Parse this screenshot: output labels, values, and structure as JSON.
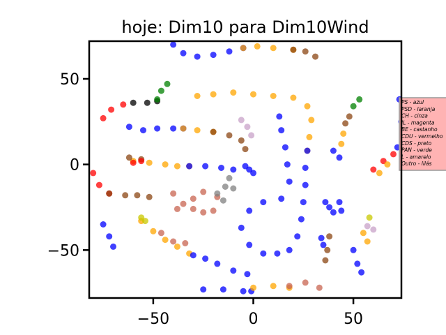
{
  "chart_data": {
    "type": "scatter",
    "title": "hoje: Dim10 para Dim10Wind",
    "xlabel": "",
    "ylabel": "",
    "xlim": [
      -82,
      74
    ],
    "ylim": [
      -78,
      72
    ],
    "x_ticks": [
      {
        "value": -50,
        "label": "−50"
      },
      {
        "value": 0,
        "label": "0"
      },
      {
        "value": 50,
        "label": "50"
      }
    ],
    "y_ticks": [
      {
        "value": 50,
        "label": "50"
      },
      {
        "value": 0,
        "label": "0"
      },
      {
        "value": -50,
        "label": "−50"
      }
    ],
    "grid": false,
    "legend_placement": "right, outside axes (clipped)",
    "legend": [
      {
        "label": "PS - azul",
        "color": "#0000ff"
      },
      {
        "label": "PSD - laranja",
        "color": "#ffa500"
      },
      {
        "label": "CH - cinza",
        "color": "#808080"
      },
      {
        "label": "IL - magenta",
        "color": "#ff00ff"
      },
      {
        "label": "BE - castanho",
        "color": "#8b4513"
      },
      {
        "label": "CDU - vermelho",
        "color": "#ff0000"
      },
      {
        "label": "CDS - preto",
        "color": "#000000"
      },
      {
        "label": "PAN - verde",
        "color": "#008000"
      },
      {
        "label": "L - amarelo",
        "color": "#c8c800"
      },
      {
        "label": "Outro - lilás",
        "color": "#c8a2c8"
      }
    ],
    "clusters": [
      {
        "color": "#ffa500",
        "points": [
          [
            -28,
            40
          ],
          [
            -20,
            41
          ],
          [
            -10,
            42
          ],
          [
            0,
            41
          ],
          [
            10,
            40
          ],
          [
            20,
            39
          ],
          [
            27,
            34
          ],
          [
            29,
            26
          ],
          [
            28,
            16
          ],
          [
            27,
            8
          ]
        ]
      },
      {
        "color": "#0000ff",
        "points": [
          [
            27,
            8
          ],
          [
            26,
            -2
          ],
          [
            26,
            -12
          ],
          [
            25,
            -22
          ],
          [
            24,
            -32
          ],
          [
            22,
            -42
          ],
          [
            18,
            -50
          ],
          [
            12,
            -52
          ],
          [
            5,
            -52
          ],
          [
            -2,
            -47
          ],
          [
            -6,
            -37
          ],
          [
            -2,
            -27
          ],
          [
            5,
            -22
          ],
          [
            14,
            -20
          ],
          [
            18,
            -10
          ],
          [
            17,
            0
          ],
          [
            16,
            10
          ],
          [
            14,
            20
          ],
          [
            13,
            28
          ]
        ]
      },
      {
        "color": "#0000ff",
        "points": [
          [
            -40,
            70
          ],
          [
            -35,
            65
          ],
          [
            -28,
            63
          ],
          [
            -20,
            64
          ],
          [
            -12,
            66
          ],
          [
            -5,
            68
          ]
        ]
      },
      {
        "color": "#ffa500",
        "points": [
          [
            -5,
            68
          ],
          [
            2,
            69
          ],
          [
            10,
            68
          ],
          [
            20,
            67
          ]
        ]
      },
      {
        "color": "#8b4513",
        "points": [
          [
            20,
            67
          ],
          [
            26,
            66
          ],
          [
            31,
            63
          ]
        ]
      },
      {
        "color": "#0000ff",
        "points": [
          [
            -62,
            22
          ],
          [
            -55,
            20
          ],
          [
            -48,
            21
          ],
          [
            -40,
            21
          ],
          [
            -35,
            21
          ]
        ]
      },
      {
        "color": "#ffa500",
        "points": [
          [
            -35,
            21
          ],
          [
            -28,
            20
          ],
          [
            -20,
            19
          ]
        ]
      },
      {
        "color": "#8b4513",
        "points": [
          [
            -20,
            19
          ],
          [
            -12,
            17
          ],
          [
            -6,
            14
          ],
          [
            -4,
            9
          ]
        ]
      },
      {
        "color": "#c8a2c8",
        "points": [
          [
            -6,
            26
          ],
          [
            -3,
            22
          ],
          [
            -1,
            17
          ]
        ]
      },
      {
        "color": "#ffa500",
        "points": [
          [
            -60,
            2
          ],
          [
            -52,
            1
          ],
          [
            -44,
            0
          ],
          [
            -38,
            -1
          ],
          [
            -32,
            -1
          ]
        ]
      },
      {
        "color": "#0000ff",
        "points": [
          [
            -32,
            -1
          ],
          [
            -24,
            -1
          ],
          [
            -16,
            -2
          ],
          [
            -10,
            -3
          ]
        ]
      },
      {
        "color": "#8b4513",
        "points": [
          [
            -62,
            4
          ],
          [
            -56,
            3
          ]
        ]
      },
      {
        "color": "#ff0000",
        "points": [
          [
            -60,
            1
          ],
          [
            -56,
            2
          ]
        ]
      },
      {
        "color": "#0000ff",
        "points": [
          [
            -4,
            -1
          ],
          [
            -2,
            -3
          ],
          [
            0,
            -5
          ]
        ]
      },
      {
        "color": "#ff0000",
        "points": [
          [
            -80,
            -5
          ],
          [
            -77,
            -12
          ],
          [
            -72,
            -17
          ]
        ]
      },
      {
        "color": "#8b4513",
        "points": [
          [
            -72,
            -17
          ],
          [
            -64,
            -18
          ],
          [
            -58,
            -18
          ],
          [
            -52,
            -19
          ]
        ]
      },
      {
        "color": "#c86450",
        "points": [
          [
            -40,
            -17
          ],
          [
            -35,
            -23
          ],
          [
            -30,
            -26
          ],
          [
            -25,
            -28
          ],
          [
            -20,
            -27
          ],
          [
            -30,
            -20
          ],
          [
            -25,
            -16
          ],
          [
            -18,
            -19
          ],
          [
            -38,
            -26
          ]
        ]
      },
      {
        "color": "#808080",
        "points": [
          [
            -18,
            -17
          ],
          [
            -14,
            -13
          ],
          [
            -12,
            -8
          ],
          [
            -15,
            -21
          ],
          [
            -10,
            -14
          ]
        ]
      },
      {
        "color": "#ffa500",
        "points": [
          [
            -56,
            -33
          ],
          [
            -50,
            -39
          ],
          [
            -44,
            -44
          ],
          [
            -38,
            -48
          ],
          [
            -32,
            -52
          ]
        ]
      },
      {
        "color": "#c86450",
        "points": [
          [
            -46,
            -40
          ],
          [
            -40,
            -45
          ],
          [
            -34,
            -46
          ]
        ]
      },
      {
        "color": "#c8c800",
        "points": [
          [
            -56,
            -31
          ],
          [
            -54,
            -33
          ]
        ]
      },
      {
        "color": "#0000ff",
        "points": [
          [
            -30,
            -53
          ],
          [
            -24,
            -55
          ],
          [
            -18,
            -58
          ],
          [
            -10,
            -62
          ],
          [
            -3,
            -64
          ]
        ]
      },
      {
        "color": "#0000ff",
        "points": [
          [
            -75,
            -35
          ],
          [
            -72,
            -42
          ],
          [
            -70,
            -48
          ]
        ]
      },
      {
        "color": "#0000ff",
        "points": [
          [
            -25,
            -73
          ],
          [
            -15,
            -73
          ],
          [
            -5,
            -74
          ],
          [
            -1,
            -74
          ]
        ]
      },
      {
        "color": "#ffa500",
        "points": [
          [
            0,
            -72
          ],
          [
            10,
            -71
          ],
          [
            18,
            -72
          ]
        ]
      },
      {
        "color": "#c86450",
        "points": [
          [
            18,
            -71
          ],
          [
            26,
            -69
          ],
          [
            33,
            -72
          ]
        ]
      },
      {
        "color": "#ff0000",
        "points": [
          [
            -75,
            27
          ],
          [
            -71,
            32
          ],
          [
            -65,
            35
          ]
        ]
      },
      {
        "color": "#000000",
        "points": [
          [
            -60,
            36
          ],
          [
            -53,
            36
          ],
          [
            -48,
            37
          ]
        ]
      },
      {
        "color": "#008000",
        "points": [
          [
            -48,
            38
          ],
          [
            -46,
            43
          ],
          [
            -43,
            47
          ]
        ]
      },
      {
        "color": "#0000ff",
        "points": [
          [
            40,
            8
          ],
          [
            43,
            4
          ]
        ]
      },
      {
        "color": "#ffa500",
        "points": [
          [
            44,
            12
          ],
          [
            45,
            18
          ]
        ]
      },
      {
        "color": "#8b4513",
        "points": [
          [
            46,
            24
          ],
          [
            48,
            28
          ]
        ]
      },
      {
        "color": "#008000",
        "points": [
          [
            50,
            34
          ],
          [
            53,
            38
          ]
        ]
      },
      {
        "color": "#ff0000",
        "points": [
          [
            60,
            -3
          ],
          [
            65,
            2
          ],
          [
            70,
            6
          ]
        ]
      },
      {
        "color": "#ffa500",
        "points": [
          [
            63,
            -5
          ],
          [
            67,
            0
          ]
        ]
      },
      {
        "color": "#0000ff",
        "points": [
          [
            72,
            10
          ],
          [
            74,
            25
          ],
          [
            73,
            38
          ]
        ]
      },
      {
        "color": "#0000ff",
        "points": [
          [
            36,
            -22
          ],
          [
            38,
            -25
          ],
          [
            40,
            -28
          ]
        ]
      },
      {
        "color": "#0000ff",
        "points": [
          [
            43,
            -22
          ],
          [
            44,
            -27
          ]
        ]
      },
      {
        "color": "#8b4513",
        "points": [
          [
            38,
            -42
          ],
          [
            37,
            -50
          ],
          [
            36,
            -56
          ]
        ]
      },
      {
        "color": "#0000ff",
        "points": [
          [
            34,
            -43
          ],
          [
            35,
            -47
          ]
        ]
      },
      {
        "color": "#0000ff",
        "points": [
          [
            50,
            -50
          ],
          [
            52,
            -58
          ],
          [
            54,
            -63
          ]
        ]
      },
      {
        "color": "#ffa500",
        "points": [
          [
            55,
            -40
          ],
          [
            57,
            -45
          ]
        ]
      },
      {
        "color": "#c8a2c8",
        "points": [
          [
            57,
            -36
          ],
          [
            60,
            -38
          ]
        ]
      },
      {
        "color": "#c8c800",
        "points": [
          [
            58,
            -31
          ]
        ]
      }
    ]
  }
}
